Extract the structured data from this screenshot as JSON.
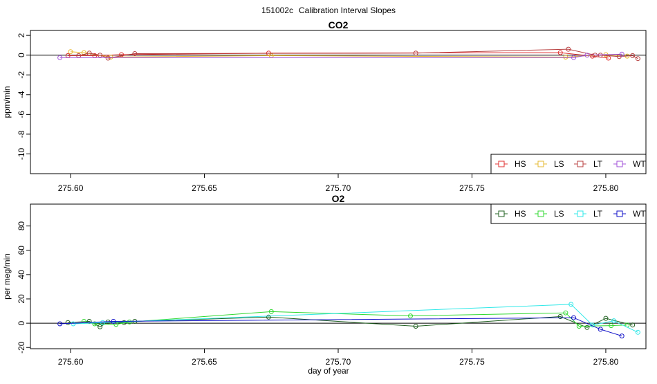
{
  "figure": {
    "title_id": "151002c",
    "title_text": "Calibration Interval Slopes",
    "xlabel": "day of year"
  },
  "chart_data": [
    {
      "type": "line",
      "title": "CO2",
      "ylabel": "ppm/min",
      "xlim": [
        275.585,
        275.815
      ],
      "ylim": [
        -12,
        2.5
      ],
      "xticks": [
        275.6,
        275.65,
        275.7,
        275.75,
        275.8
      ],
      "xtick_labels": [
        "275.60",
        "275.65",
        "275.70",
        "275.75",
        "275.80"
      ],
      "yticks": [
        2,
        0,
        -2,
        -4,
        -6,
        -8,
        -10
      ],
      "ytick_labels": [
        "2",
        "0",
        "-2",
        "-4",
        "-6",
        "-8",
        "-10"
      ],
      "reference_line": 0,
      "legend_position": "bottom-right",
      "legend_style": "horizontal",
      "series": [
        {
          "name": "HS",
          "color": "#e03030",
          "points": [
            [
              275.599,
              -0.05
            ],
            [
              275.609,
              -0.05
            ],
            [
              275.619,
              0.05
            ],
            [
              275.674,
              0.2
            ],
            [
              275.783,
              0.25
            ],
            [
              275.795,
              -0.1
            ],
            [
              275.801,
              -0.3
            ]
          ]
        },
        {
          "name": "LS",
          "color": "#e6b830",
          "points": [
            [
              275.6,
              0.35
            ],
            [
              275.605,
              0.25
            ],
            [
              275.615,
              -0.2
            ],
            [
              275.675,
              -0.05
            ],
            [
              275.785,
              -0.2
            ],
            [
              275.8,
              0.05
            ],
            [
              275.808,
              -0.1
            ]
          ]
        },
        {
          "name": "LT",
          "color": "#b84040",
          "points": [
            [
              275.603,
              -0.05
            ],
            [
              275.607,
              0.2
            ],
            [
              275.611,
              0.0
            ],
            [
              275.614,
              -0.3
            ],
            [
              275.624,
              0.15
            ],
            [
              275.729,
              0.2
            ],
            [
              275.786,
              0.6
            ],
            [
              275.796,
              0.0
            ],
            [
              275.798,
              0.0
            ],
            [
              275.805,
              -0.15
            ],
            [
              275.81,
              -0.05
            ],
            [
              275.812,
              -0.35
            ]
          ]
        },
        {
          "name": "WT",
          "color": "#a050d8",
          "points": [
            [
              275.596,
              -0.25
            ],
            [
              275.788,
              -0.25
            ],
            [
              275.793,
              0.0
            ],
            [
              275.806,
              0.1
            ]
          ]
        }
      ]
    },
    {
      "type": "line",
      "title": "O2",
      "ylabel": "per meg/min",
      "xlim": [
        275.585,
        275.815
      ],
      "ylim": [
        -21,
        98
      ],
      "xticks": [
        275.6,
        275.65,
        275.7,
        275.75,
        275.8
      ],
      "xtick_labels": [
        "275.60",
        "275.65",
        "275.70",
        "275.75",
        "275.80"
      ],
      "yticks": [
        80,
        60,
        40,
        20,
        0,
        -20
      ],
      "ytick_labels": [
        "80",
        "60",
        "40",
        "20",
        "0",
        "-20"
      ],
      "reference_line": 0,
      "legend_position": "top-right",
      "legend_style": "horizontal",
      "series": [
        {
          "name": "HS",
          "color": "#206020",
          "points": [
            [
              275.599,
              0.5
            ],
            [
              275.607,
              1.5
            ],
            [
              275.611,
              -3
            ],
            [
              275.614,
              1
            ],
            [
              275.62,
              0.5
            ],
            [
              275.624,
              1.5
            ],
            [
              275.674,
              5
            ],
            [
              275.729,
              -2.5
            ],
            [
              275.783,
              5.5
            ],
            [
              275.793,
              -3.5
            ],
            [
              275.8,
              4
            ],
            [
              275.81,
              -1.5
            ]
          ]
        },
        {
          "name": "LS",
          "color": "#30d830",
          "points": [
            [
              275.605,
              1.5
            ],
            [
              275.609,
              -0.5
            ],
            [
              275.617,
              -1
            ],
            [
              275.622,
              1
            ],
            [
              275.675,
              9.5
            ],
            [
              275.727,
              6
            ],
            [
              275.785,
              8.5
            ],
            [
              275.79,
              -2.5
            ],
            [
              275.802,
              -2
            ],
            [
              275.808,
              -1.5
            ]
          ]
        },
        {
          "name": "LT",
          "color": "#30e8e8",
          "points": [
            [
              275.601,
              -0.5
            ],
            [
              275.612,
              0.5
            ],
            [
              275.787,
              15.5
            ],
            [
              275.795,
              -1.5
            ],
            [
              275.803,
              2
            ],
            [
              275.812,
              -7.5
            ]
          ]
        },
        {
          "name": "WT",
          "color": "#1010c8",
          "points": [
            [
              275.596,
              -0.5
            ],
            [
              275.616,
              1.5
            ],
            [
              275.788,
              4.5
            ],
            [
              275.798,
              -5
            ],
            [
              275.806,
              -10.5
            ]
          ]
        }
      ]
    }
  ]
}
